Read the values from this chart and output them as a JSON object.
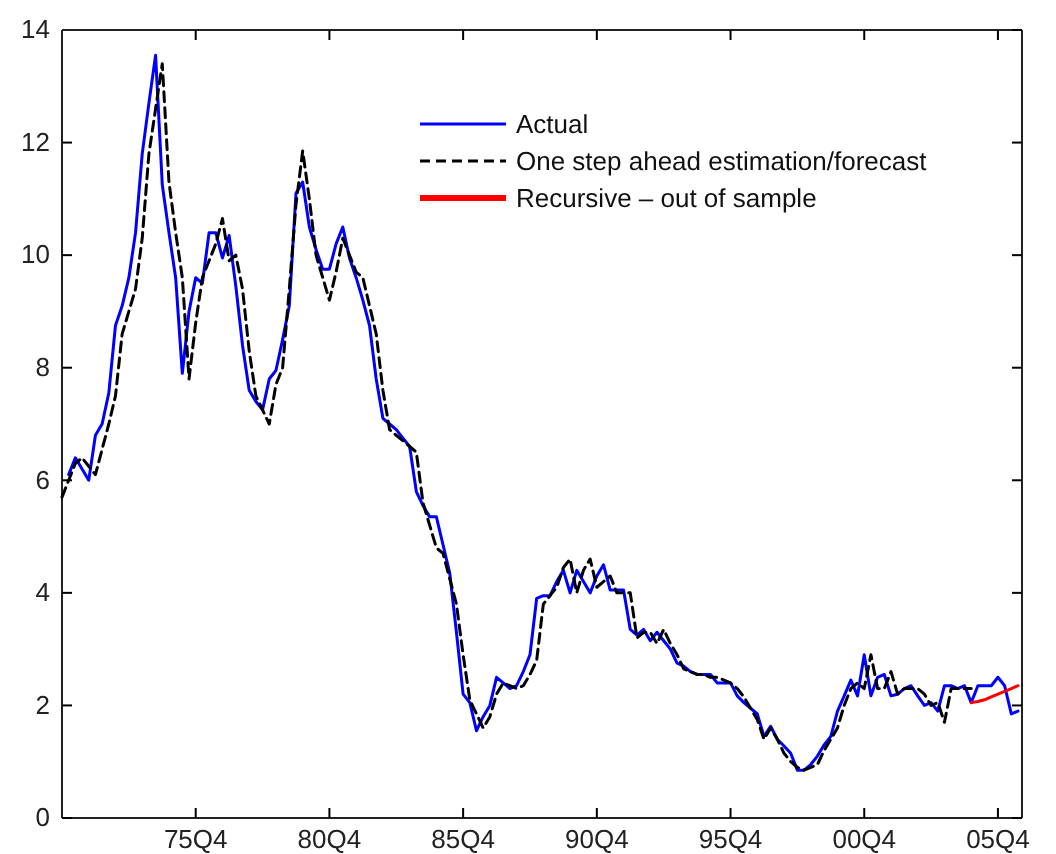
{
  "chart_data": {
    "type": "line",
    "ylim": [
      0,
      14
    ],
    "yticks": [
      0,
      2,
      4,
      6,
      8,
      10,
      12,
      14
    ],
    "grid": false,
    "legend": "top right",
    "categories": [
      null,
      null,
      null,
      null,
      null,
      null,
      null,
      null,
      null,
      null,
      null,
      null,
      null,
      null,
      null,
      null,
      null,
      null,
      null,
      null,
      "75Q4",
      null,
      null,
      null,
      null,
      null,
      null,
      null,
      null,
      null,
      null,
      null,
      null,
      null,
      null,
      null,
      null,
      null,
      null,
      null,
      "80Q4",
      null,
      null,
      null,
      null,
      null,
      null,
      null,
      null,
      null,
      null,
      null,
      null,
      null,
      null,
      null,
      null,
      null,
      null,
      null,
      "85Q4",
      null,
      null,
      null,
      null,
      null,
      null,
      null,
      null,
      null,
      null,
      null,
      null,
      null,
      null,
      null,
      null,
      null,
      null,
      null,
      "90Q4",
      null,
      null,
      null,
      null,
      null,
      null,
      null,
      null,
      null,
      null,
      null,
      null,
      null,
      null,
      null,
      null,
      null,
      null,
      null,
      "95Q4",
      null,
      null,
      null,
      null,
      null,
      null,
      null,
      null,
      null,
      null,
      null,
      null,
      null,
      null,
      null,
      null,
      null,
      null,
      null,
      "00Q4",
      null,
      null,
      null,
      null,
      null,
      null,
      null,
      null,
      null,
      null,
      null,
      null,
      null,
      null,
      null,
      null,
      null,
      null,
      null,
      "05Q4",
      null,
      null,
      null
    ],
    "series": [
      {
        "name": "Actual",
        "color": "#0000ff",
        "line_style": "solid",
        "values": [
          null,
          6.1,
          6.4,
          6.2,
          6.0,
          6.8,
          7.0,
          7.55,
          8.75,
          9.1,
          9.6,
          10.4,
          11.8,
          12.7,
          13.55,
          11.25,
          10.4,
          9.6,
          7.9,
          9.0,
          9.6,
          9.5,
          10.4,
          10.4,
          9.95,
          10.35,
          9.45,
          8.4,
          7.6,
          7.4,
          7.25,
          7.8,
          7.95,
          8.5,
          9.1,
          11.1,
          11.3,
          10.5,
          10.1,
          9.75,
          9.75,
          10.2,
          10.5,
          9.95,
          9.6,
          9.2,
          8.75,
          7.8,
          7.1,
          7.0,
          6.9,
          6.75,
          6.6,
          5.8,
          5.55,
          5.35,
          5.35,
          4.85,
          4.35,
          3.3,
          2.2,
          2.05,
          1.55,
          1.8,
          2.0,
          2.5,
          2.4,
          2.3,
          2.35,
          2.6,
          2.9,
          3.9,
          3.95,
          3.95,
          4.2,
          4.4,
          4.0,
          4.4,
          4.2,
          4.0,
          4.3,
          4.5,
          4.05,
          4.05,
          4.05,
          3.35,
          3.25,
          3.35,
          3.15,
          3.3,
          3.15,
          3.0,
          2.75,
          2.7,
          2.6,
          2.55,
          2.55,
          2.55,
          2.4,
          2.4,
          2.4,
          2.17,
          2.05,
          1.95,
          1.85,
          1.45,
          1.63,
          1.4,
          1.28,
          1.15,
          0.85,
          0.85,
          0.95,
          1.1,
          1.3,
          1.45,
          1.9,
          2.17,
          2.45,
          2.17,
          2.9,
          2.17,
          2.5,
          2.55,
          2.17,
          2.2,
          2.3,
          2.35,
          2.17,
          2.0,
          2.05,
          1.9,
          2.35,
          2.35,
          2.3,
          2.35,
          2.05,
          2.35,
          2.35,
          2.35,
          2.5,
          2.35,
          1.85,
          1.9
        ]
      },
      {
        "name": "One step ahead estimation/forecast",
        "color": "#000000",
        "line_style": "dashed",
        "values": [
          5.7,
          6.0,
          6.3,
          6.4,
          6.25,
          6.1,
          6.55,
          7.0,
          7.5,
          8.6,
          9.0,
          9.4,
          10.3,
          11.8,
          12.6,
          13.4,
          11.3,
          10.4,
          9.6,
          7.8,
          8.8,
          9.6,
          9.9,
          10.2,
          10.65,
          9.9,
          10.0,
          9.4,
          8.3,
          7.5,
          7.25,
          7.0,
          7.7,
          8.0,
          9.4,
          10.9,
          11.85,
          11.0,
          10.0,
          9.6,
          9.2,
          9.7,
          10.3,
          10.0,
          9.7,
          9.6,
          9.1,
          8.6,
          7.6,
          6.9,
          6.8,
          6.7,
          6.6,
          6.5,
          5.6,
          5.2,
          4.8,
          4.7,
          4.25,
          3.8,
          2.9,
          2.1,
          1.85,
          1.6,
          1.8,
          2.2,
          2.4,
          2.35,
          2.3,
          2.35,
          2.55,
          2.8,
          3.8,
          3.95,
          4.1,
          4.45,
          4.6,
          4.0,
          4.4,
          4.6,
          4.1,
          4.2,
          4.3,
          4.0,
          4.0,
          4.0,
          3.2,
          3.3,
          3.3,
          3.1,
          3.35,
          3.1,
          2.9,
          2.65,
          2.6,
          2.55,
          2.55,
          2.5,
          2.5,
          2.45,
          2.4,
          2.3,
          2.15,
          1.95,
          1.75,
          1.4,
          1.6,
          1.4,
          1.15,
          1.0,
          0.9,
          0.85,
          0.9,
          0.95,
          1.2,
          1.4,
          1.6,
          2.0,
          2.3,
          2.4,
          2.3,
          2.9,
          2.3,
          2.3,
          2.6,
          2.2,
          2.3,
          2.3,
          2.3,
          2.2,
          2.0,
          2.05,
          1.7,
          2.3,
          2.3,
          2.3,
          2.3,
          null,
          null,
          null,
          null,
          null,
          null,
          null
        ]
      },
      {
        "name": "Recursive – out of sample",
        "color": "#ff0000",
        "line_style": "solid",
        "values": [
          null,
          null,
          null,
          null,
          null,
          null,
          null,
          null,
          null,
          null,
          null,
          null,
          null,
          null,
          null,
          null,
          null,
          null,
          null,
          null,
          null,
          null,
          null,
          null,
          null,
          null,
          null,
          null,
          null,
          null,
          null,
          null,
          null,
          null,
          null,
          null,
          null,
          null,
          null,
          null,
          null,
          null,
          null,
          null,
          null,
          null,
          null,
          null,
          null,
          null,
          null,
          null,
          null,
          null,
          null,
          null,
          null,
          null,
          null,
          null,
          null,
          null,
          null,
          null,
          null,
          null,
          null,
          null,
          null,
          null,
          null,
          null,
          null,
          null,
          null,
          null,
          null,
          null,
          null,
          null,
          null,
          null,
          null,
          null,
          null,
          null,
          null,
          null,
          null,
          null,
          null,
          null,
          null,
          null,
          null,
          null,
          null,
          null,
          null,
          null,
          null,
          null,
          null,
          null,
          null,
          null,
          null,
          null,
          null,
          null,
          null,
          null,
          null,
          null,
          null,
          null,
          null,
          null,
          null,
          null,
          null,
          null,
          null,
          null,
          null,
          null,
          null,
          null,
          null,
          null,
          null,
          null,
          null,
          null,
          null,
          null,
          2.05,
          2.07,
          2.1,
          2.15,
          2.2,
          2.25,
          2.3,
          2.35
        ]
      }
    ]
  }
}
